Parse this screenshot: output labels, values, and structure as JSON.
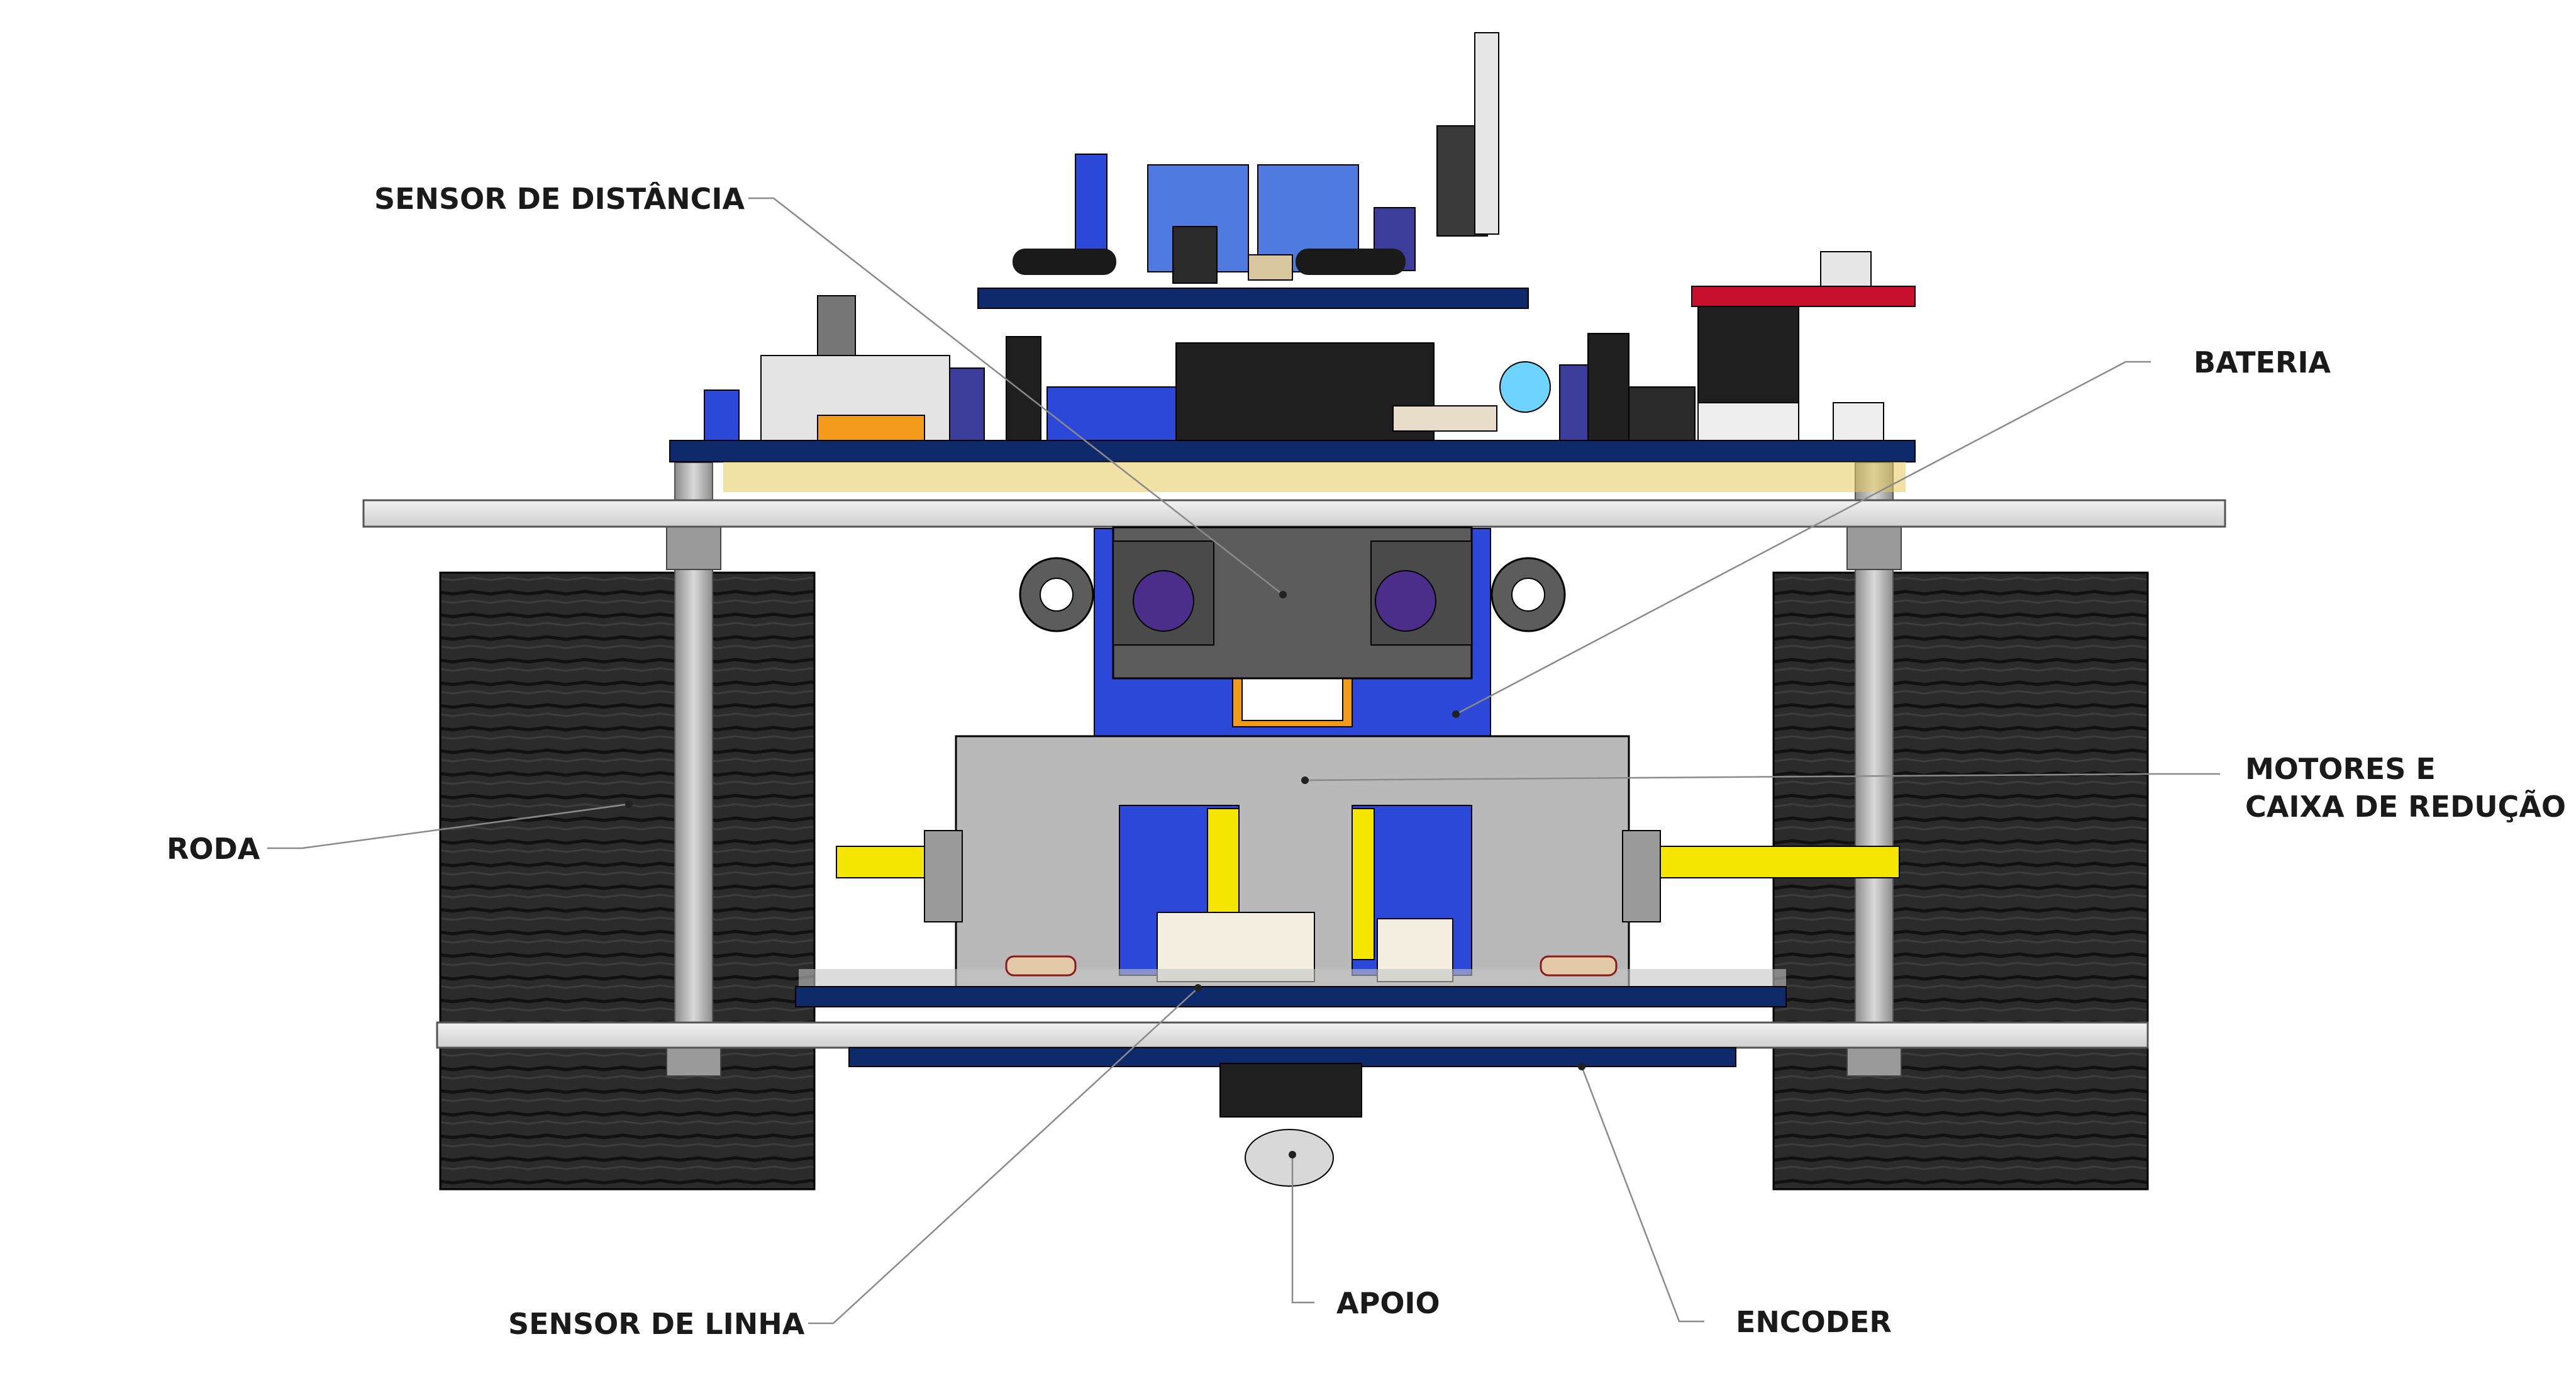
{
  "labels": {
    "sensor_distancia": "SENSOR DE DISTÂNCIA",
    "bateria": "BATERIA",
    "motores_line1": "MOTORES E",
    "motores_line2": "CAIXA DE REDUÇÃO",
    "roda": "RODA",
    "sensor_linha": "SENSOR DE LINHA",
    "apoio": "APOIO",
    "encoder": "ENCODER"
  },
  "colors": {
    "pcb": "#0e2a6b",
    "tire": "#2a2a2a",
    "plate": "#e9e9e9",
    "gearbox": "#b9b9b9",
    "motor_blue": "#2b48d8",
    "shaft_yellow": "#f4e600",
    "sensor_gray": "#5c5c5c",
    "red_board": "#c8102e",
    "leader": "#8a8a8a"
  }
}
